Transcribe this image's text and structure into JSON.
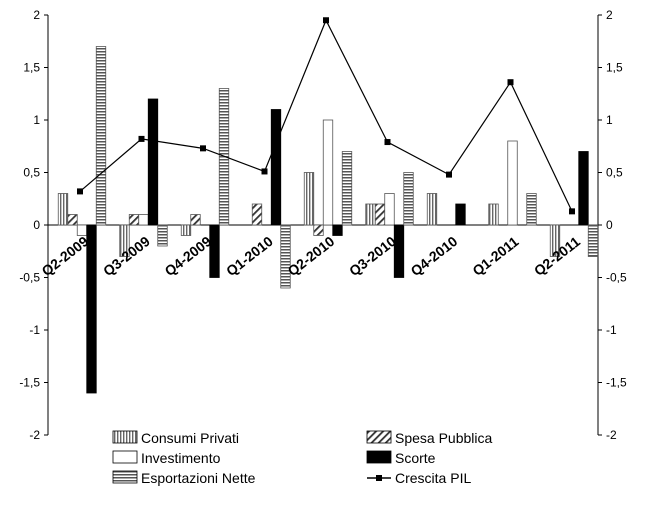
{
  "chart_data": {
    "type": "bar",
    "categories": [
      "Q2-2009",
      "Q3-2009",
      "Q4-2009",
      "Q1-2010",
      "Q2-2010",
      "Q3-2010",
      "Q4-2010",
      "Q1-2011",
      "Q2-2011"
    ],
    "ylim": [
      -2,
      2
    ],
    "y_ticks": [
      "-2",
      "-1,5",
      "-1",
      "-0,5",
      "0",
      "0,5",
      "1",
      "1,5",
      "2"
    ],
    "y_ticks_right": [
      "-2",
      "-1,5",
      "-1",
      "-0,5",
      "0",
      "0,5",
      "1",
      "1,5",
      "2"
    ],
    "series": [
      {
        "name": "Consumi Privati",
        "kind": "bar",
        "pattern": "vstripe",
        "values": [
          0.3,
          -0.3,
          -0.1,
          0.0,
          0.5,
          0.2,
          0.3,
          0.2,
          -0.3
        ]
      },
      {
        "name": "Spesa Pubblica",
        "kind": "bar",
        "pattern": "diag",
        "values": [
          0.1,
          0.1,
          0.1,
          0.2,
          -0.1,
          0.2,
          0.0,
          0.0,
          0.0
        ]
      },
      {
        "name": "Investimento",
        "kind": "bar",
        "pattern": "white",
        "values": [
          -0.1,
          0.1,
          0.0,
          0.0,
          1.0,
          0.3,
          0.0,
          0.8,
          0.0
        ]
      },
      {
        "name": "Scorte",
        "kind": "bar",
        "pattern": "black",
        "values": [
          -1.6,
          1.2,
          -0.5,
          1.1,
          -0.1,
          -0.5,
          0.2,
          0.0,
          0.7
        ]
      },
      {
        "name": "Esportazioni Nette",
        "kind": "bar",
        "pattern": "hstripe",
        "values": [
          1.7,
          -0.2,
          1.3,
          -0.6,
          0.7,
          0.5,
          0.0,
          0.3,
          -0.3
        ]
      },
      {
        "name": "Crescita PIL",
        "kind": "line",
        "values": [
          0.32,
          0.82,
          0.73,
          0.51,
          1.95,
          0.79,
          0.48,
          1.36,
          0.13
        ]
      }
    ],
    "legend_position": "bottom",
    "grid": false
  }
}
